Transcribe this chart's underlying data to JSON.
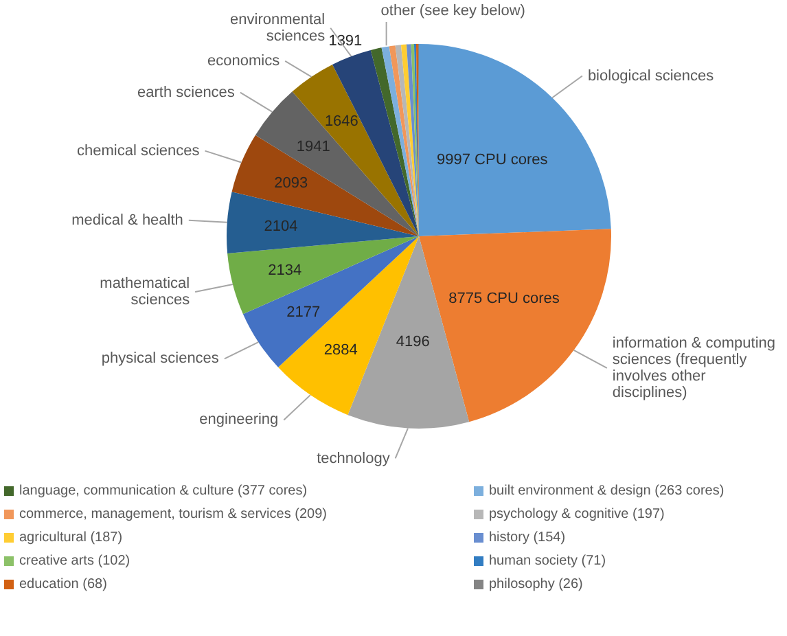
{
  "chart_data": {
    "type": "pie",
    "categories": [
      "biological sciences",
      "information & computing sciences (frequently involves other disciplines)",
      "technology",
      "engineering",
      "physical sciences",
      "mathematical sciences",
      "medical & health",
      "chemical sciences",
      "earth sciences",
      "economics",
      "environmental sciences",
      "language, communication & culture (377 cores)",
      "built environment & design (263 cores)",
      "commerce, management, tourism & services (209)",
      "psychology & cognitive (197)",
      "agricultural (187)",
      "history (154)",
      "creative arts (102)",
      "human society (71)",
      "education (68)",
      "philosophy (26)"
    ],
    "values": [
      9997,
      8775,
      4196,
      2884,
      2177,
      2134,
      2104,
      2093,
      1941,
      1646,
      1391,
      377,
      263,
      209,
      197,
      187,
      154,
      102,
      71,
      68,
      26
    ],
    "value_labels": [
      "9997 CPU cores",
      "8775 CPU cores",
      "4196",
      "2884",
      "2177",
      "2134",
      "2104",
      "2093",
      "1941",
      "1646",
      "1391",
      null,
      null,
      null,
      null,
      null,
      null,
      null,
      null,
      null,
      null
    ],
    "colors": [
      "#5b9bd5",
      "#ed7d31",
      "#a5a5a5",
      "#ffc000",
      "#4472c4",
      "#70ad47",
      "#255e91",
      "#9e480e",
      "#636363",
      "#997300",
      "#264478",
      "#43682b",
      "#7cafdd",
      "#f1975a",
      "#b7b7b7",
      "#ffcd33",
      "#698ed0",
      "#8cc168",
      "#327dc2",
      "#d26012",
      "#848484"
    ],
    "annotations": [
      "other (see key below)"
    ],
    "legend": "bottom"
  }
}
